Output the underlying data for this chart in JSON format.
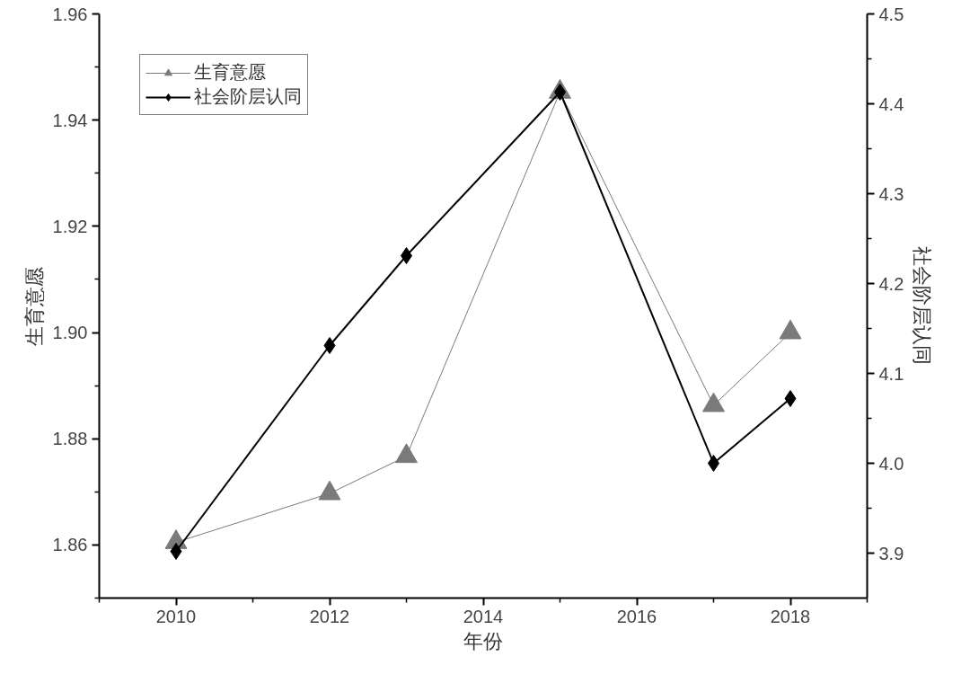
{
  "chart_data": {
    "type": "line",
    "xlabel": "年份",
    "ylabel": "生育意愿",
    "y2label": "社会阶层认同",
    "x": [
      2010,
      2012,
      2013,
      2015,
      2017,
      2018
    ],
    "series": [
      {
        "name": "生育意愿",
        "color": "#7a7a7a",
        "marker": "triangle",
        "values": [
          1.8605,
          1.8697,
          1.8767,
          1.9453,
          1.8863,
          1.9
        ]
      },
      {
        "name": "社会阶层认同",
        "color": "#000000",
        "marker": "diamond",
        "axis": "y2",
        "values": [
          3.902,
          4.131,
          4.231,
          4.413,
          4.0,
          4.072
        ]
      }
    ],
    "xlim": [
      2009,
      2019
    ],
    "xticks": [
      2010,
      2012,
      2014,
      2016,
      2018
    ],
    "ylim": [
      1.85,
      1.96
    ],
    "yticks": [
      1.86,
      1.88,
      {
        "value": 1.9,
        "label": "1.90"
      },
      1.92,
      1.94,
      1.96
    ],
    "y2lim": [
      3.85,
      4.5
    ],
    "y2ticks": [
      3.9,
      {
        "value": 4.0,
        "label": "4.0"
      },
      4.1,
      4.2,
      4.3,
      4.4,
      4.5
    ],
    "grid": false,
    "legend": "top left",
    "line_style": "solid"
  }
}
